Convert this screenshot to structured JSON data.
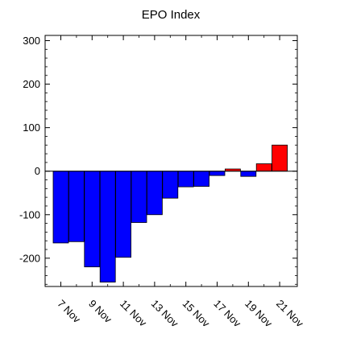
{
  "chart_data": {
    "type": "bar",
    "title": "EPO Index",
    "xlabel": "",
    "ylabel": "",
    "x_tick_labels": [
      "7 Nov",
      "9 Nov",
      "11 Nov",
      "13 Nov",
      "15 Nov",
      "17 Nov",
      "19 Nov",
      "21 Nov"
    ],
    "categories": [
      "7 Nov",
      "8 Nov",
      "9 Nov",
      "10 Nov",
      "11 Nov",
      "12 Nov",
      "13 Nov",
      "14 Nov",
      "15 Nov",
      "16 Nov",
      "17 Nov",
      "18 Nov",
      "19 Nov",
      "20 Nov",
      "21 Nov"
    ],
    "values": [
      -165,
      -162,
      -220,
      -255,
      -198,
      -118,
      -100,
      -62,
      -36,
      -35,
      -10,
      5,
      -12,
      17,
      60
    ],
    "ylim": [
      -265,
      312
    ],
    "y_ticks": [
      -200,
      -100,
      0,
      100,
      200,
      300
    ],
    "grid": false,
    "colors": {
      "negative": "#0000ff",
      "positive": "#ff0000",
      "outline": "#000000"
    }
  }
}
